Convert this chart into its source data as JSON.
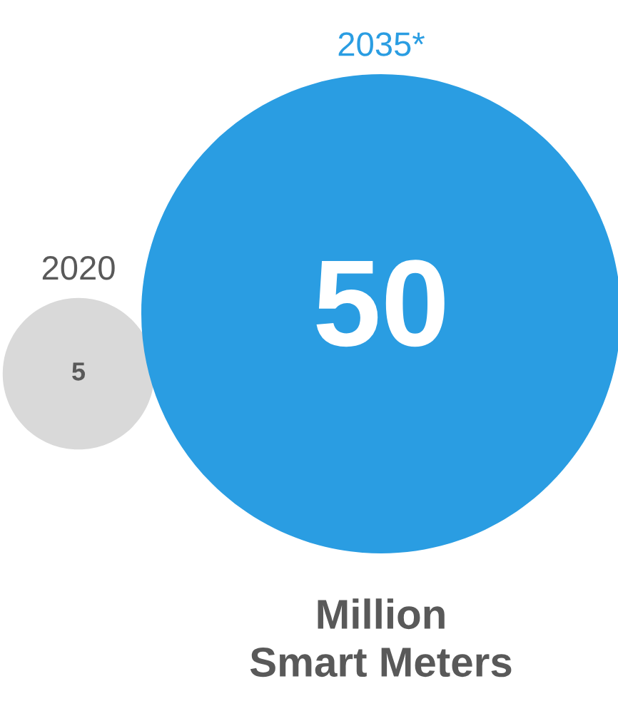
{
  "chart_data": {
    "type": "other",
    "categories": [
      "2020",
      "2035*"
    ],
    "values": [
      5,
      50
    ],
    "colors": [
      "#d9d9d9",
      "#2a9de2"
    ],
    "data_labels": true,
    "xlabel": "Million\nSmart Meters"
  }
}
